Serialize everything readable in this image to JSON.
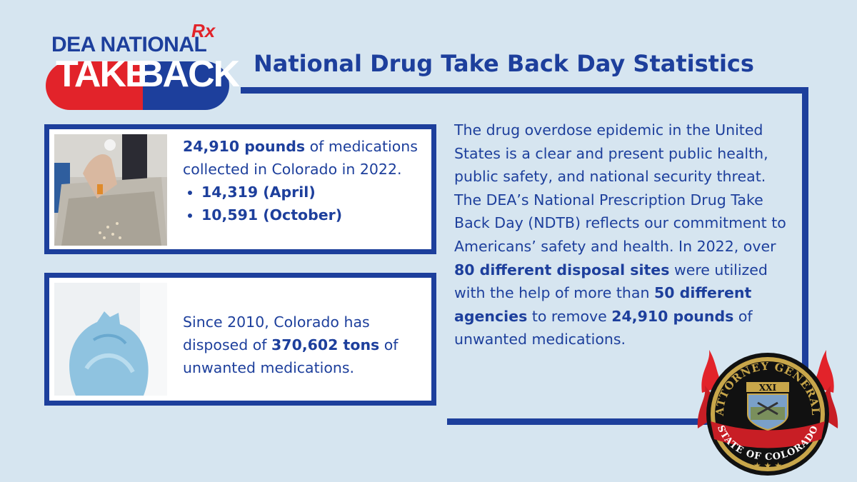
{
  "logo": {
    "top_text": "DEA NATIONAL",
    "rx_text": "Rx",
    "pill_left": "TAKE",
    "pill_right": "BACK",
    "colors": {
      "blue": "#1d3f9c",
      "red": "#e2232a"
    }
  },
  "title": "National Drug Take Back Day Statistics",
  "card1": {
    "image_icon": "hand-disposing-pills-photo",
    "bold_lead": "24,910 pounds",
    "lead_rest": " of medications collected in Colorado in 2022.",
    "bullets": [
      "14,319 (April)",
      "10,591 (October)"
    ]
  },
  "card2": {
    "image_icon": "blue-trash-bag-photo",
    "text_before": "Since 2010, Colorado has disposed of ",
    "bold": "370,602 tons",
    "text_after": " of unwanted medications."
  },
  "paragraph": {
    "p1": "The drug overdose epidemic in the United States is a clear and present public health, public safety, and national security threat. The DEA’s National Prescription Drug Take Back Day (NDTB) reflects our commitment to Americans’ safety and health. In 2022, over ",
    "b1": "80 different disposal sites",
    "p2": " were utilized with the help of more than ",
    "b2": "50 different agencies",
    "p3": " to remove ",
    "b3": "24,910 pounds",
    "p4": " of unwanted medications."
  },
  "seal": {
    "top_text": "ATTORNEY GENERAL",
    "bottom_text": "STATE OF COLORADO",
    "numeral": "XXI"
  },
  "colors": {
    "background": "#d6e5f0",
    "accent": "#1d3f9c"
  }
}
